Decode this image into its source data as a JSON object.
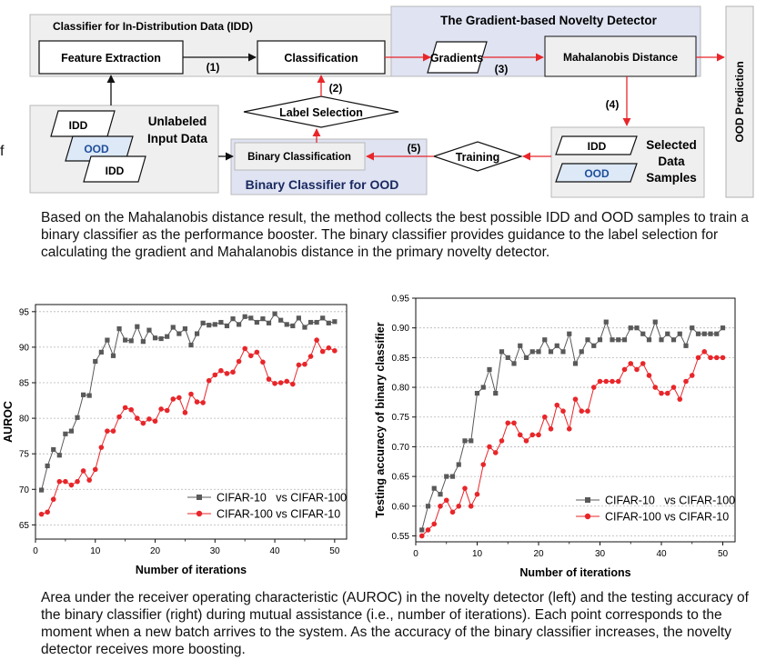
{
  "diagram": {
    "idd_panel_title": "Classifier for In-Distribution Data (IDD)",
    "gnd_title": "The Gradient-based Novelty Detector",
    "feature_extraction": "Feature Extraction",
    "classification": "Classification",
    "gradients": "Gradients",
    "mahalanobis": "Mahalanobis Distance",
    "ood_prediction": "OOD Prediction",
    "label_selection": "Label Selection",
    "unlabeled_line1": "Unlabeled",
    "unlabeled_line2": "Input Data",
    "idd": "IDD",
    "ood": "OOD",
    "binary_classification": "Binary Classification",
    "binary_classifier_title": "Binary Classifier for OOD",
    "training": "Training",
    "selected_line1": "Selected",
    "selected_line2": "Data",
    "selected_line3": "Samples",
    "step1": "(1)",
    "step2": "(2)",
    "step3": "(3)",
    "step4": "(4)",
    "step5": "(5)",
    "stray_char": "f"
  },
  "captions": {
    "top": "Based on the Mahalanobis distance result, the method collects the best possible IDD and OOD samples to train a binary classifier as the performance booster. The binary classifier provides guidance to the label selection for calculating the gradient and Mahalanobis distance in the primary novelty detector.",
    "bottom": "Area under the receiver operating characteristic (AUROC)  in the novelty detector (left) and the testing accuracy of the binary classifier (right) during mutual assistance (i.e., number of iterations). Each point corresponds to the moment when a new batch arrives to the system. As the accuracy of the binary classifier increases, the novelty detector receives more boosting."
  },
  "colors": {
    "panel_grey": "#efefef",
    "panel_blue": "#dfe3f2",
    "ood_fill": "#dde9f7",
    "arrow_red": "#e8262a",
    "series_grey": "#595959",
    "series_red": "#e8262a"
  },
  "chart_data": [
    {
      "type": "line",
      "xlabel": "Number of iterations",
      "ylabel": "AUROC",
      "xlim": [
        0,
        52
      ],
      "ylim": [
        63,
        96
      ],
      "xticks": [
        "0",
        "10",
        "20",
        "30",
        "40",
        "50"
      ],
      "yticks": [
        "65",
        "70",
        "75",
        "80",
        "85",
        "90",
        "95"
      ],
      "grid": true,
      "legend": "bottom-right",
      "x": [
        1,
        2,
        3,
        4,
        5,
        6,
        7,
        8,
        9,
        10,
        11,
        12,
        13,
        14,
        15,
        16,
        17,
        18,
        19,
        20,
        21,
        22,
        23,
        24,
        25,
        26,
        27,
        28,
        29,
        30,
        31,
        32,
        33,
        34,
        35,
        36,
        37,
        38,
        39,
        40,
        41,
        42,
        43,
        44,
        45,
        46,
        47,
        48,
        49,
        50
      ],
      "series": [
        {
          "name": "CIFAR-10   vs CIFAR-100",
          "marker": "square",
          "color": "#595959",
          "values": [
            69.9,
            73.3,
            75.6,
            74.8,
            77.8,
            78.2,
            80.1,
            83.3,
            83.2,
            88.0,
            89.3,
            91.0,
            88.8,
            92.6,
            91.0,
            90.9,
            92.9,
            90.8,
            92.4,
            91.3,
            91.2,
            91.5,
            92.8,
            91.9,
            92.6,
            90.3,
            91.9,
            93.4,
            93.1,
            93.2,
            93.5,
            93.0,
            94.0,
            93.2,
            94.3,
            94.1,
            93.5,
            94.0,
            93.4,
            94.7,
            93.8,
            93.2,
            93.0,
            94.1,
            92.8,
            93.5,
            93.5,
            94.1,
            93.4,
            93.6
          ]
        },
        {
          "name": "CIFAR-100 vs CIFAR-10",
          "marker": "circle",
          "color": "#e8262a",
          "values": [
            66.5,
            66.8,
            68.6,
            71.1,
            71.1,
            70.6,
            71.1,
            72.6,
            71.3,
            72.8,
            75.9,
            78.2,
            78.2,
            80.2,
            81.5,
            81.2,
            80.0,
            79.3,
            79.9,
            79.6,
            81.3,
            81.1,
            82.7,
            82.9,
            80.8,
            83.4,
            82.3,
            82.2,
            85.3,
            86.1,
            86.7,
            86.3,
            86.5,
            88.0,
            89.8,
            88.8,
            89.3,
            87.9,
            85.5,
            84.9,
            85.0,
            85.2,
            84.8,
            87.5,
            87.6,
            88.7,
            91.0,
            89.4,
            89.9,
            89.5
          ]
        }
      ]
    },
    {
      "type": "line",
      "xlabel": "Number of iterations",
      "ylabel": "Testing accuracy of binary classifier",
      "xlim": [
        0,
        52
      ],
      "ylim": [
        0.54,
        0.95
      ],
      "xticks": [
        "0",
        "10",
        "20",
        "30",
        "40",
        "50"
      ],
      "yticks": [
        "0.55",
        "0.60",
        "0.65",
        "0.70",
        "0.75",
        "0.80",
        "0.85",
        "0.90",
        "0.95"
      ],
      "grid": true,
      "legend": "bottom-right",
      "x": [
        1,
        2,
        3,
        4,
        5,
        6,
        7,
        8,
        9,
        10,
        11,
        12,
        13,
        14,
        15,
        16,
        17,
        18,
        19,
        20,
        21,
        22,
        23,
        24,
        25,
        26,
        27,
        28,
        29,
        30,
        31,
        32,
        33,
        34,
        35,
        36,
        37,
        38,
        39,
        40,
        41,
        42,
        43,
        44,
        45,
        46,
        47,
        48,
        49,
        50
      ],
      "series": [
        {
          "name": "CIFAR-10   vs CIFAR-100",
          "marker": "square",
          "color": "#595959",
          "values": [
            0.56,
            0.6,
            0.63,
            0.62,
            0.65,
            0.65,
            0.67,
            0.71,
            0.71,
            0.79,
            0.8,
            0.83,
            0.79,
            0.86,
            0.85,
            0.84,
            0.87,
            0.85,
            0.86,
            0.86,
            0.88,
            0.86,
            0.87,
            0.86,
            0.89,
            0.84,
            0.86,
            0.88,
            0.87,
            0.88,
            0.91,
            0.88,
            0.88,
            0.88,
            0.9,
            0.9,
            0.89,
            0.88,
            0.91,
            0.88,
            0.89,
            0.88,
            0.89,
            0.87,
            0.9,
            0.89,
            0.89,
            0.89,
            0.89,
            0.9
          ]
        },
        {
          "name": "CIFAR-100 vs CIFAR-10",
          "marker": "circle",
          "color": "#e8262a",
          "values": [
            0.55,
            0.56,
            0.57,
            0.6,
            0.61,
            0.59,
            0.6,
            0.63,
            0.6,
            0.62,
            0.67,
            0.7,
            0.69,
            0.71,
            0.74,
            0.74,
            0.72,
            0.71,
            0.72,
            0.72,
            0.75,
            0.73,
            0.77,
            0.76,
            0.73,
            0.78,
            0.76,
            0.76,
            0.8,
            0.81,
            0.81,
            0.81,
            0.81,
            0.83,
            0.84,
            0.83,
            0.84,
            0.82,
            0.8,
            0.79,
            0.79,
            0.8,
            0.78,
            0.81,
            0.82,
            0.85,
            0.86,
            0.85,
            0.85,
            0.85
          ]
        }
      ]
    }
  ]
}
